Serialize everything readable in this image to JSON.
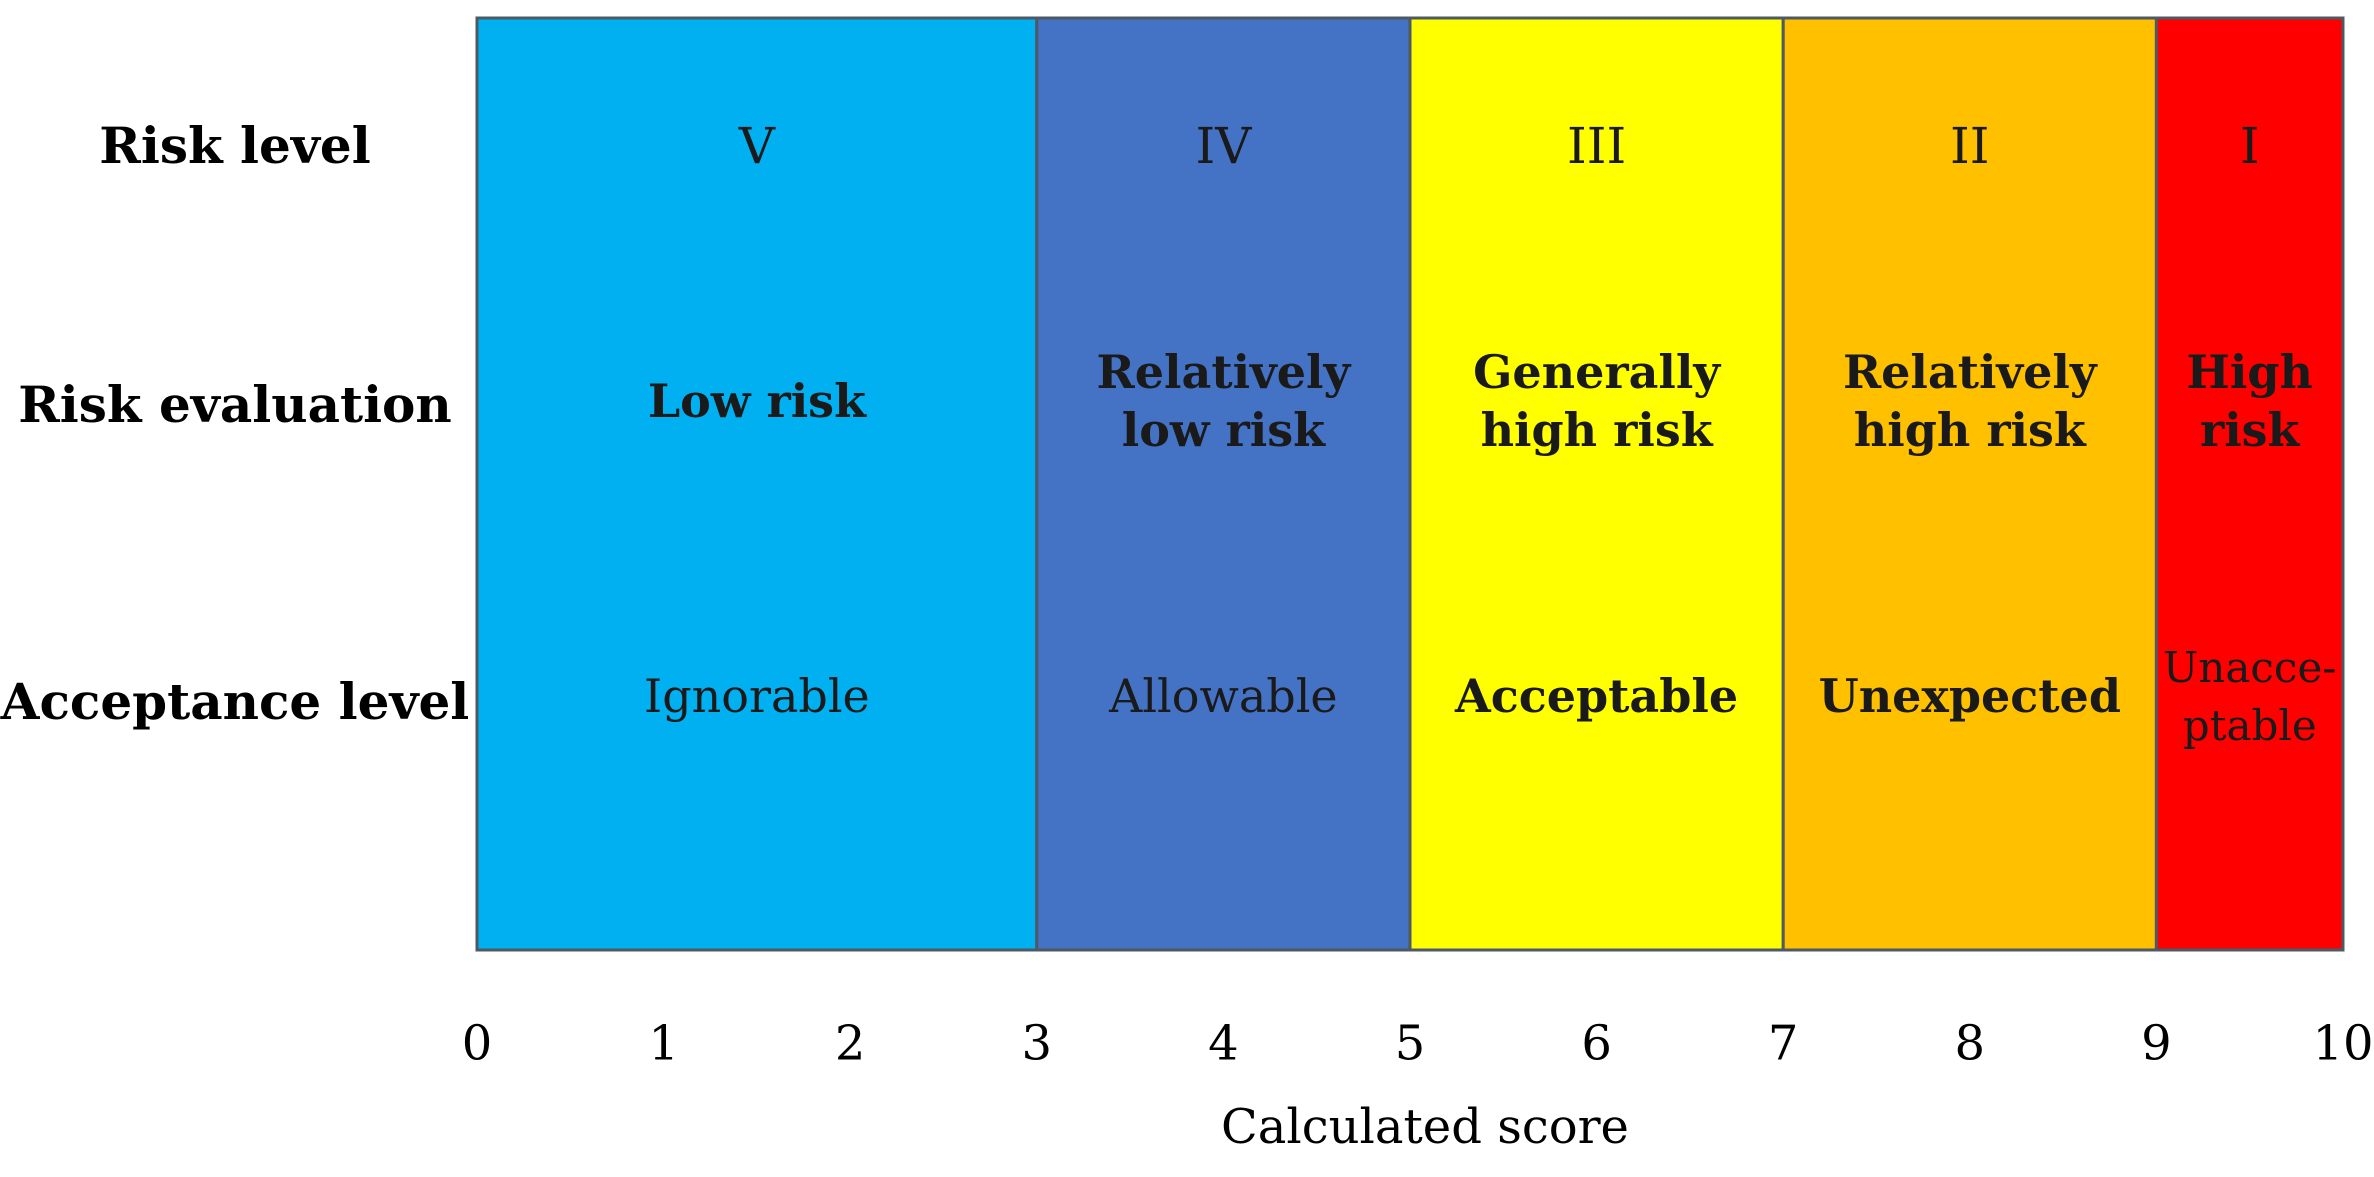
{
  "row_labels": {
    "risk_level": "Risk level",
    "risk_evaluation": "Risk evaluation",
    "acceptance_level": "Acceptance level"
  },
  "axis": {
    "label": "Calculated score",
    "min": 0,
    "max": 10,
    "ticks": [
      "0",
      "1",
      "2",
      "3",
      "4",
      "5",
      "6",
      "7",
      "8",
      "9",
      "10"
    ]
  },
  "bands": [
    {
      "level": "V",
      "evaluation": [
        "Low risk"
      ],
      "acceptance": [
        "Ignorable"
      ],
      "acceptance_bold": false,
      "from": 0,
      "to": 3,
      "color": "#00B0F0"
    },
    {
      "level": "IV",
      "evaluation": [
        "Relatively",
        "low risk"
      ],
      "acceptance": [
        "Allowable"
      ],
      "acceptance_bold": false,
      "from": 3,
      "to": 5,
      "color": "#4472C4"
    },
    {
      "level": "III",
      "evaluation": [
        "Generally",
        "high risk"
      ],
      "acceptance": [
        "Acceptable"
      ],
      "acceptance_bold": true,
      "from": 5,
      "to": 7,
      "color": "#FFFF00"
    },
    {
      "level": "II",
      "evaluation": [
        "Relatively",
        "high risk"
      ],
      "acceptance": [
        "Unexpected"
      ],
      "acceptance_bold": true,
      "from": 7,
      "to": 9,
      "color": "#FFC000"
    },
    {
      "level": "I",
      "evaluation": [
        "High",
        "risk"
      ],
      "acceptance": [
        "Unacce-",
        "ptable"
      ],
      "acceptance_bold": false,
      "from": 9,
      "to": 10,
      "color": "#FF0000"
    }
  ]
}
